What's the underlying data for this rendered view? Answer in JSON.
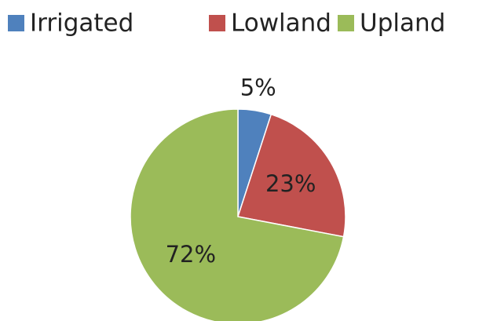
{
  "chart_data": {
    "type": "pie",
    "categories": [
      "Irrigated",
      "Lowland",
      "Upland"
    ],
    "values": [
      5,
      23,
      72
    ],
    "value_labels": [
      "5%",
      "23%",
      "72%"
    ],
    "colors": [
      "#4f81bd",
      "#c0504d",
      "#9bbb59"
    ],
    "legend": "top"
  }
}
